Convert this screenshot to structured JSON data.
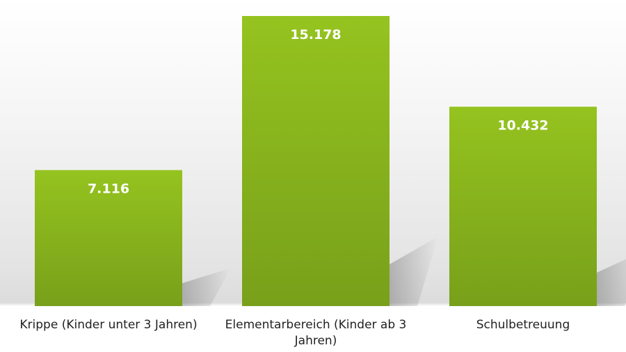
{
  "chart_data": {
    "type": "bar",
    "categories": [
      "Krippe (Kinder unter 3 Jahren)",
      "Elementarbereich (Kinder ab 3 Jahren)",
      "Schulbetreuung"
    ],
    "values": [
      7116,
      15178,
      10432
    ],
    "value_labels": [
      "7.116",
      "15.178",
      "10.432"
    ],
    "title": "",
    "xlabel": "",
    "ylabel": "",
    "ylim": [
      0,
      16000
    ],
    "grid": false,
    "legend": "none",
    "colors": {
      "bar_top": "#95c31f",
      "bar_bottom": "#78a01a"
    }
  }
}
